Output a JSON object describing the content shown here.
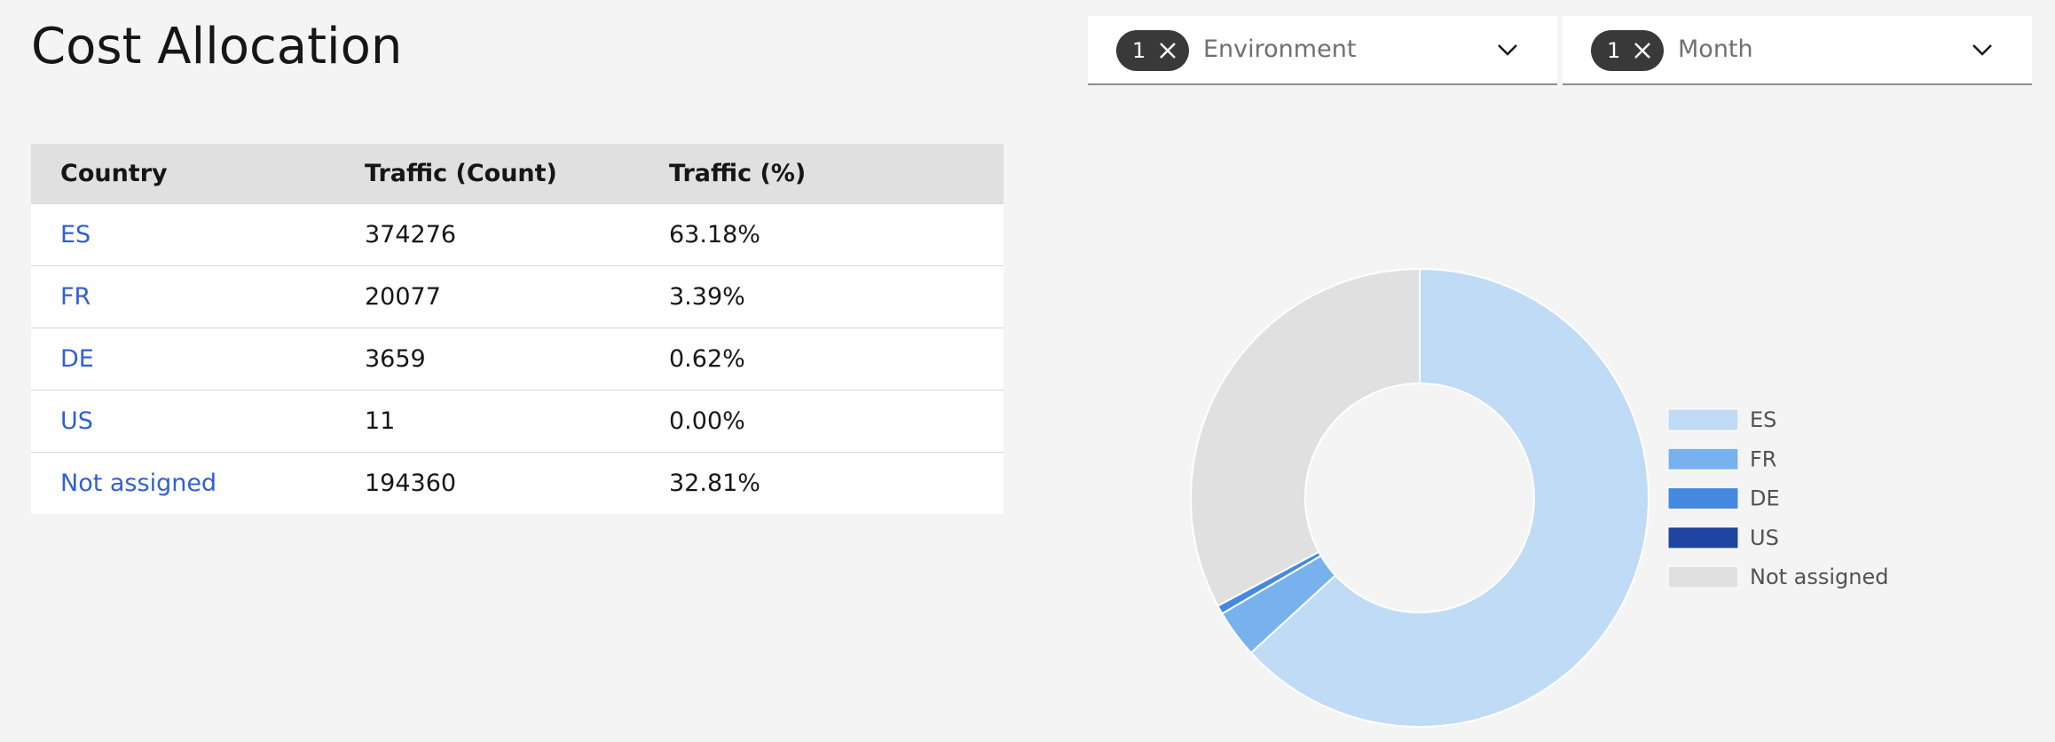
{
  "header": {
    "title": "Cost Allocation"
  },
  "filters": [
    {
      "count": "1",
      "label": "Environment"
    },
    {
      "count": "1",
      "label": "Month"
    }
  ],
  "table": {
    "columns": [
      "Country",
      "Traffic (Count)",
      "Traffic (%)"
    ],
    "rows": [
      [
        "ES",
        "374276",
        "63.18%"
      ],
      [
        "FR",
        "20077",
        "3.39%"
      ],
      [
        "DE",
        "3659",
        "0.62%"
      ],
      [
        "US",
        "11",
        "0.00%"
      ],
      [
        "Not assigned",
        "194360",
        "32.81%"
      ]
    ]
  },
  "chart_data": {
    "type": "pie",
    "donut": true,
    "categories": [
      "ES",
      "FR",
      "DE",
      "US",
      "Not assigned"
    ],
    "values": [
      374276,
      20077,
      3659,
      11,
      194360
    ],
    "colors": [
      "#c0dbf6",
      "#78b2ee",
      "#4589e0",
      "#1f45a0",
      "#e0e0e0"
    ]
  }
}
